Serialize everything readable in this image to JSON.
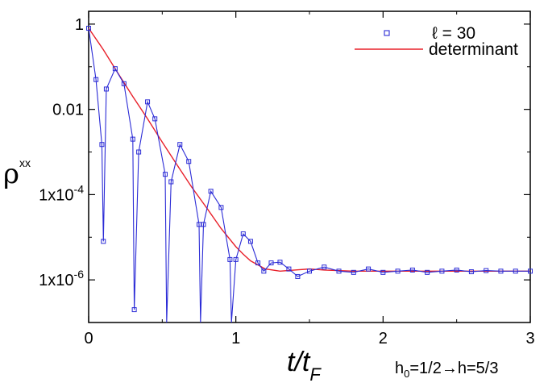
{
  "chart_data": {
    "type": "line",
    "xlabel": "t/t_F",
    "ylabel": "ρ^xx",
    "annotation": "h0=1/2→h=5/3",
    "yscale": "log",
    "xlim": [
      0,
      3
    ],
    "ylim": [
      1e-07,
      2
    ],
    "x_ticks": [
      "0",
      "1",
      "2",
      "3"
    ],
    "y_ticks": [
      "1",
      "0.01",
      "1x10-4",
      "1x10-6"
    ],
    "legend_position": "top-right",
    "series": [
      {
        "name": "ℓ = 30",
        "style": "markers-line",
        "color": "#2b2bd6",
        "x": [
          0.0,
          0.05,
          0.09,
          0.1,
          0.12,
          0.18,
          0.24,
          0.3,
          0.31,
          0.34,
          0.4,
          0.45,
          0.52,
          0.53,
          0.56,
          0.62,
          0.68,
          0.75,
          0.76,
          0.78,
          0.83,
          0.9,
          0.96,
          0.97,
          1.0,
          1.05,
          1.1,
          1.15,
          1.19,
          1.24,
          1.3,
          1.36,
          1.42,
          1.5,
          1.6,
          1.7,
          1.8,
          1.9,
          2.0,
          2.1,
          2.2,
          2.3,
          2.4,
          2.5,
          2.6,
          2.7,
          2.8,
          2.9,
          3.0
        ],
        "y": [
          0.8,
          0.05,
          0.0015,
          8e-06,
          0.03,
          0.09,
          0.04,
          0.002,
          2e-07,
          0.001,
          0.015,
          0.006,
          0.0003,
          1e-07,
          0.0002,
          0.0015,
          0.0006,
          2e-05,
          1e-07,
          2e-05,
          0.00012,
          5e-05,
          3e-06,
          1e-07,
          3e-06,
          1.2e-05,
          8e-06,
          2.5e-06,
          1.6e-06,
          2.5e-06,
          2.6e-06,
          1.8e-06,
          1.2e-06,
          1.6e-06,
          2e-06,
          1.6e-06,
          1.5e-06,
          1.8e-06,
          1.5e-06,
          1.6e-06,
          1.7e-06,
          1.5e-06,
          1.6e-06,
          1.7e-06,
          1.55e-06,
          1.65e-06,
          1.6e-06,
          1.6e-06,
          1.6e-06
        ]
      },
      {
        "name": "determinant",
        "style": "line",
        "color": "#e8202a",
        "x": [
          0.0,
          0.1,
          0.2,
          0.3,
          0.4,
          0.5,
          0.6,
          0.7,
          0.8,
          0.9,
          1.0,
          1.05,
          1.1,
          1.2,
          1.3,
          1.4,
          1.5,
          1.6,
          1.8,
          2.0,
          2.2,
          2.5,
          3.0
        ],
        "y": [
          0.8,
          0.25,
          0.07,
          0.02,
          0.006,
          0.0017,
          0.0005,
          0.00015,
          5e-05,
          1.6e-05,
          6e-06,
          4e-06,
          2.8e-06,
          1.8e-06,
          1.6e-06,
          1.7e-06,
          1.8e-06,
          1.7e-06,
          1.6e-06,
          1.6e-06,
          1.6e-06,
          1.6e-06,
          1.6e-06
        ]
      }
    ]
  }
}
